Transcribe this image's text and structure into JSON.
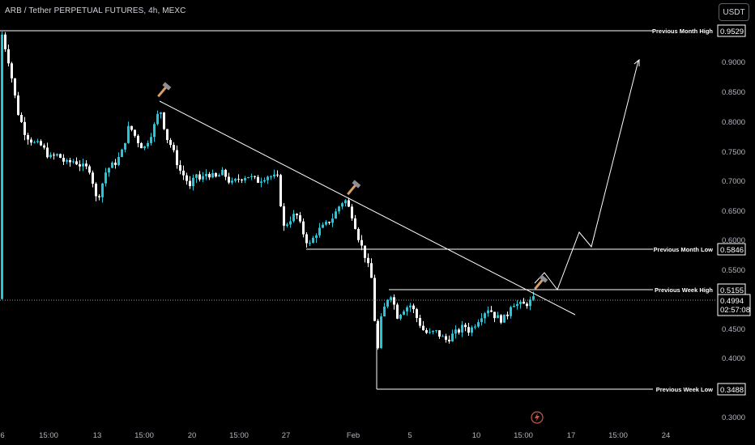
{
  "header": {
    "title": "ARB / Tether PERPETUAL FUTURES, 4h, MEXC",
    "currency_button": "USDT"
  },
  "chart_data": {
    "type": "candlestick",
    "title": "ARB / Tether PERPETUAL FUTURES, 4h, MEXC",
    "y_ticks": [
      "0.9000",
      "0.8500",
      "0.8000",
      "0.7500",
      "0.7000",
      "0.6500",
      "0.6000",
      "0.5500",
      "0.4500",
      "0.4000",
      "0.3000"
    ],
    "x_ticks": [
      "6",
      "15:00",
      "13",
      "15:00",
      "20",
      "15:00",
      "27",
      "Feb",
      "5",
      "10",
      "15:00",
      "17",
      "15:00",
      "24"
    ],
    "levels": [
      {
        "name": "Previous Month High",
        "value": "0.9529"
      },
      {
        "name": "Previous Month Low",
        "value": "0.5846"
      },
      {
        "name": "Previous Week High",
        "value": "0.5155"
      },
      {
        "name": "Previous Week Low",
        "value": "0.3488"
      }
    ],
    "current_price": "0.4994",
    "countdown": "02:57:08",
    "colors": {
      "up": "#26c6da",
      "down": "#ffffff",
      "lines": "#ffffff",
      "hammer": "#d9a066",
      "background": "#000000"
    },
    "key_prices": [
      {
        "x": "6",
        "y": 0.95
      },
      {
        "x": "13",
        "y": 0.7
      },
      {
        "x": "13 15:00",
        "y": 0.66
      },
      {
        "x": "20",
        "y": 0.83
      },
      {
        "x": "27",
        "y": 0.7
      },
      {
        "x": "28",
        "y": 0.61
      },
      {
        "x": "Feb 1",
        "y": 0.67
      },
      {
        "x": "Feb 3",
        "y": 0.4
      },
      {
        "x": "Feb 3",
        "y": 0.51
      },
      {
        "x": "Feb 8",
        "y": 0.43
      },
      {
        "x": "Feb 14",
        "y": 0.5
      }
    ]
  }
}
